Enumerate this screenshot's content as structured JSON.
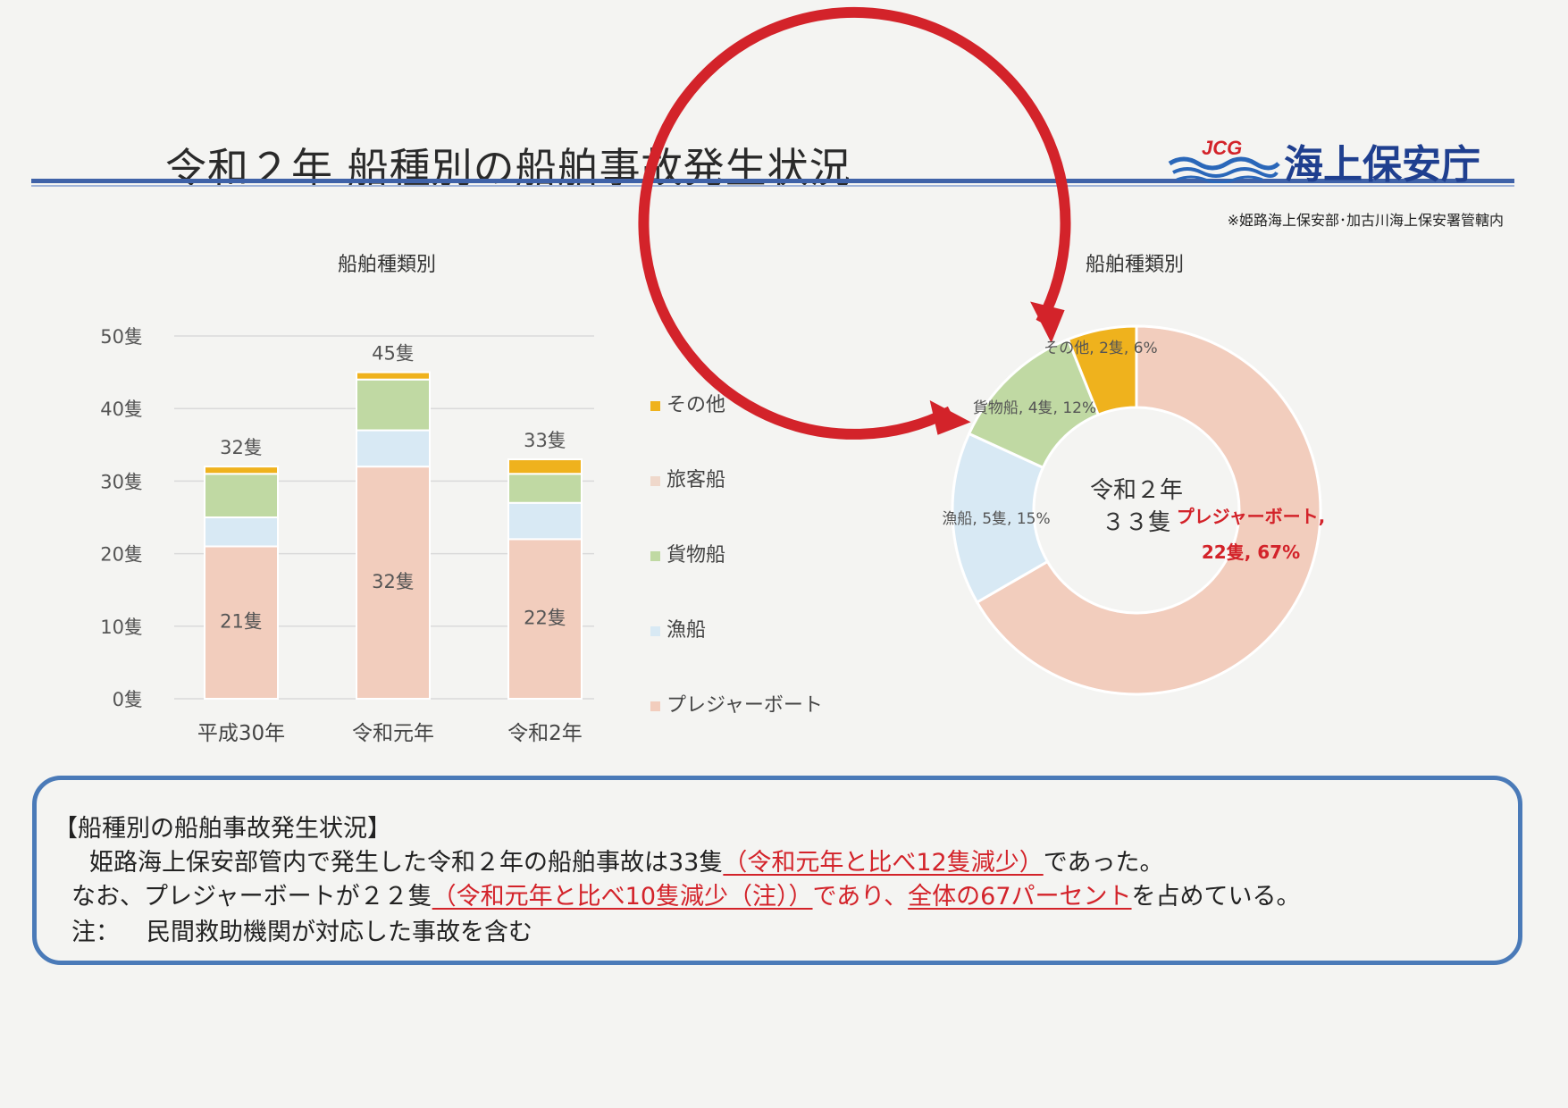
{
  "header": {
    "title": "令和２年 船種別の船舶事故発生状況",
    "logo_badge": "JCG",
    "logo_text": "海上保安庁",
    "note": "※姫路海上保安部･加古川海上保安署管轄内"
  },
  "colors": {
    "pleasure": "#f2cdbd",
    "fishing": "#d8e9f4",
    "cargo": "#c0d9a3",
    "passenger": "#efd8cb",
    "other": "#efb21d",
    "accent_red": "#d3232a",
    "brand_blue": "#1f3f8f"
  },
  "chart_data": [
    {
      "type": "bar",
      "stacked": true,
      "title": "船舶種類別",
      "categories": [
        "平成30年",
        "令和元年",
        "令和2年"
      ],
      "series": [
        {
          "name": "プレジャーボート",
          "values": [
            21,
            32,
            22
          ]
        },
        {
          "name": "漁船",
          "values": [
            4,
            5,
            5
          ]
        },
        {
          "name": "貨物船",
          "values": [
            6,
            7,
            4
          ]
        },
        {
          "name": "旅客船",
          "values": [
            0,
            0,
            0
          ]
        },
        {
          "name": "その他",
          "values": [
            1,
            1,
            2
          ]
        }
      ],
      "totals": [
        32,
        45,
        33
      ],
      "total_labels": [
        "32隻",
        "45隻",
        "33隻"
      ],
      "segment_labels": [
        "21隻",
        "32隻",
        "22隻"
      ],
      "yticks": [
        "0隻",
        "10隻",
        "20隻",
        "30隻",
        "40隻",
        "50隻"
      ],
      "ylim": [
        0,
        50
      ],
      "grid": true,
      "legend": [
        "その他",
        "旅客船",
        "貨物船",
        "漁船",
        "プレジャーボート"
      ],
      "legend_position": "right"
    },
    {
      "type": "pie",
      "donut": true,
      "title": "船舶種類別",
      "center_label": [
        "令和２年",
        "３３隻"
      ],
      "slices": [
        {
          "name": "プレジャーボート",
          "value": 22,
          "percent": 67,
          "label_line1": "プレジャーボート,",
          "label_line2": "22隻, 67%"
        },
        {
          "name": "漁船",
          "value": 5,
          "percent": 15,
          "label": "漁船, 5隻, 15%"
        },
        {
          "name": "貨物船",
          "value": 4,
          "percent": 12,
          "label": "貨物船, 4隻, 12%"
        },
        {
          "name": "その他",
          "value": 2,
          "percent": 6,
          "label": "その他, 2隻, 6%"
        }
      ]
    }
  ],
  "summary": {
    "heading": "【船種別の船舶事故発生状況】",
    "line1_a": "姫路海上保安部管内で発生した令和２年の船舶事故は33隻",
    "line1_b": "（令和元年と比べ12隻減少）",
    "line1_c": "であった。",
    "line2_a": "なお、プレジャーボートが２２隻",
    "line2_b": "（令和元年と比べ10隻減少（注））",
    "line2_c": "であり、",
    "line2_d": "全体の67パーセント",
    "line2_e": "を占めている。",
    "note_label": "注：",
    "note_text": "民間救助機関が対応した事故を含む"
  }
}
